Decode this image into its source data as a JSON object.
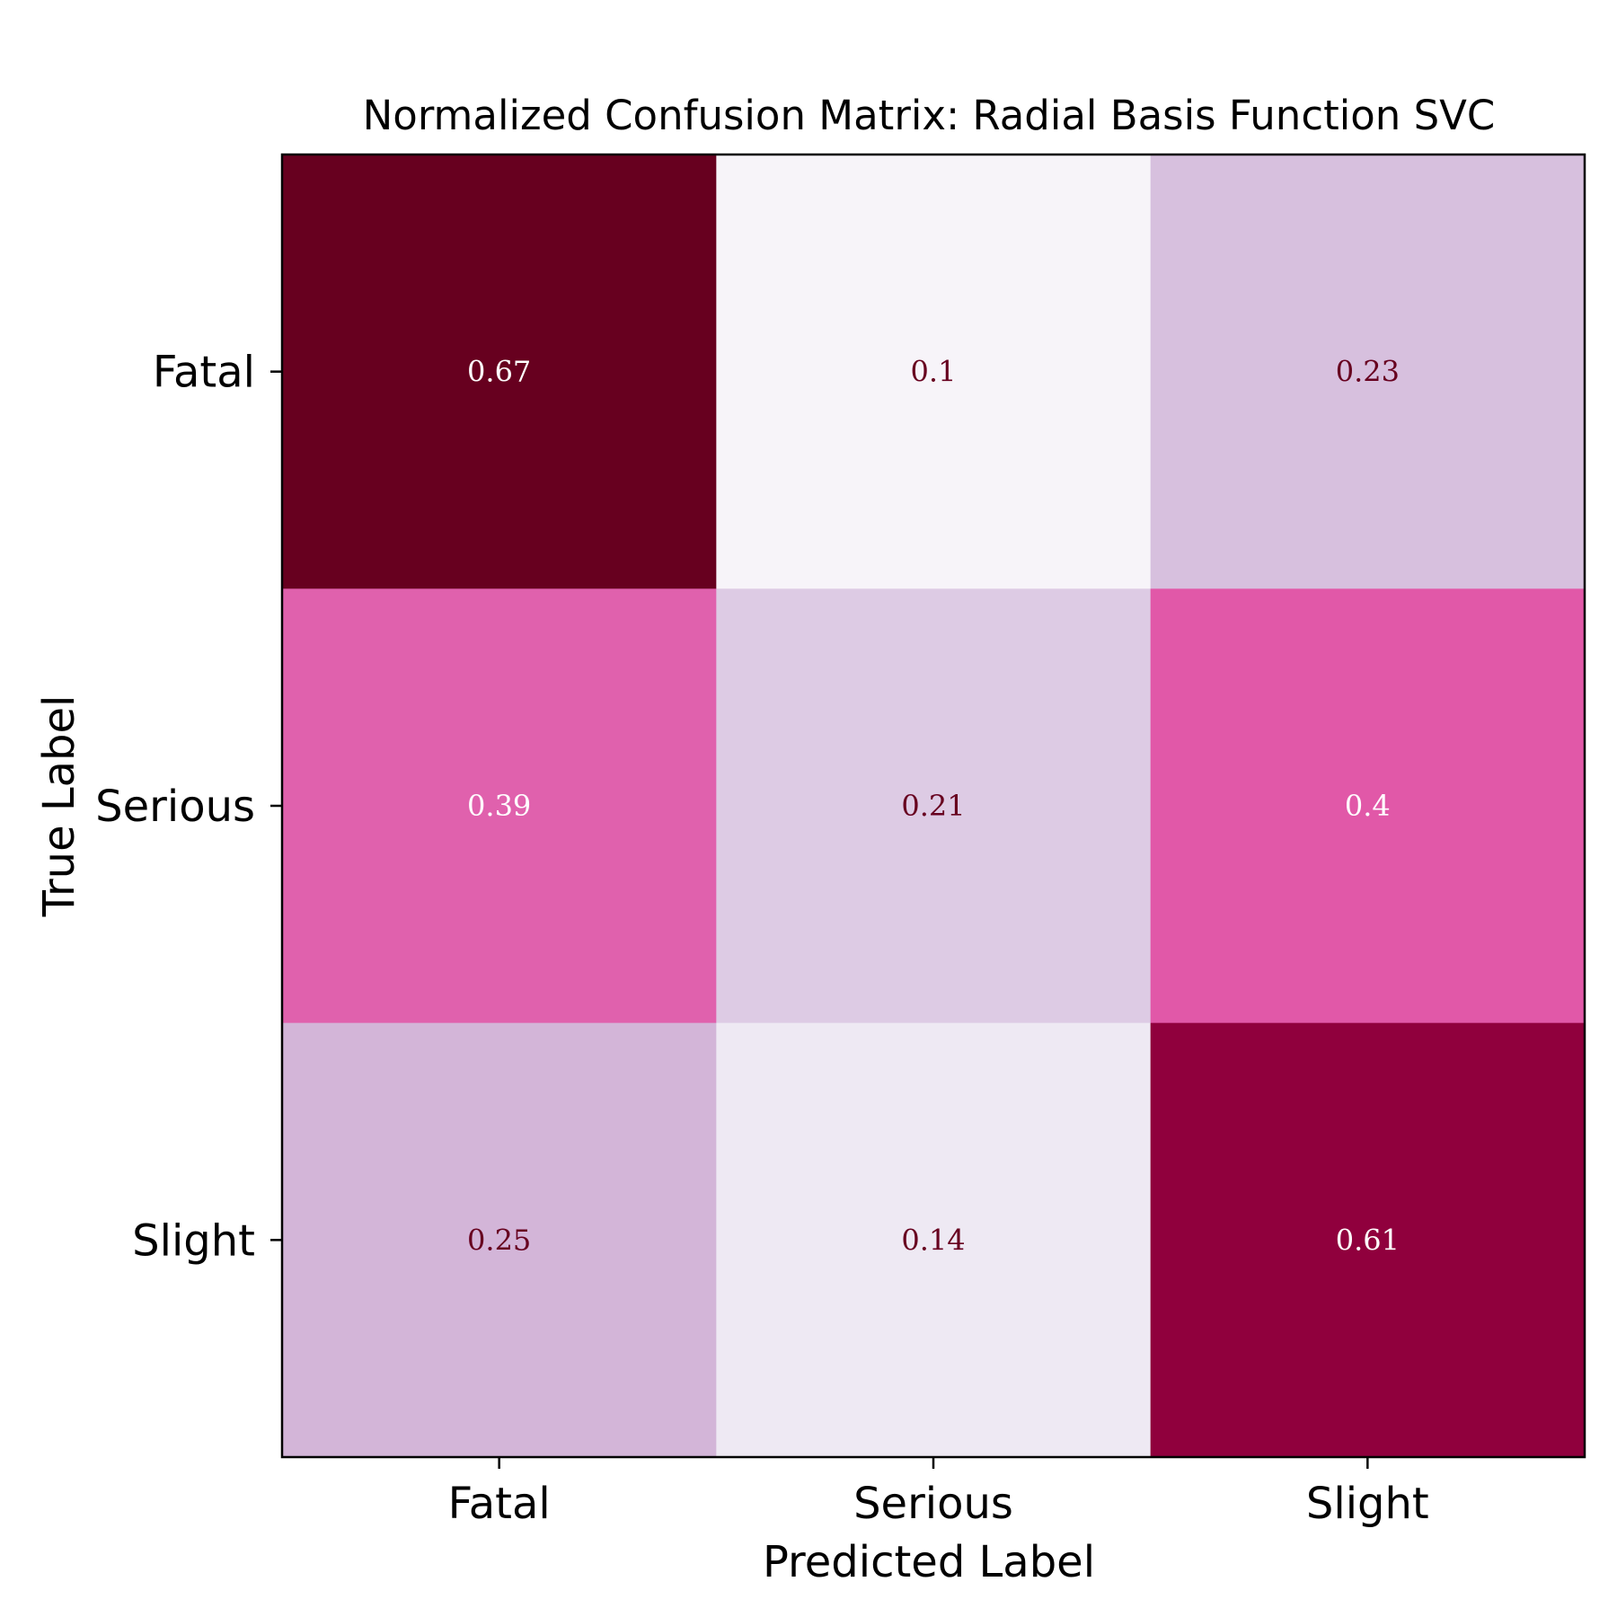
{
  "chart_data": {
    "type": "heatmap",
    "title": "Normalized Confusion Matrix: Radial Basis Function SVC",
    "xlabel": "Predicted Label",
    "ylabel": "True Label",
    "x_categories": [
      "Fatal",
      "Serious",
      "Slight"
    ],
    "y_categories": [
      "Fatal",
      "Serious",
      "Slight"
    ],
    "values": [
      [
        0.67,
        0.1,
        0.23
      ],
      [
        0.39,
        0.21,
        0.4
      ],
      [
        0.25,
        0.14,
        0.61
      ]
    ],
    "colormap": "PuRd",
    "vmin": 0.1,
    "vmax": 0.67,
    "grid": false
  }
}
